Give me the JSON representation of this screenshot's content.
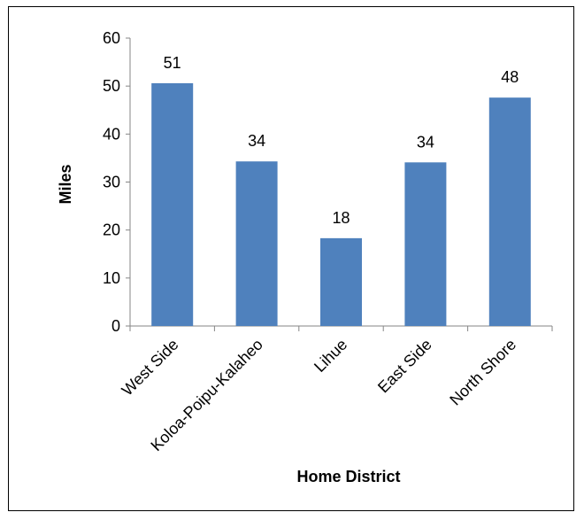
{
  "chart_data": {
    "type": "bar",
    "categories": [
      "West Side",
      "Koloa-Poipu-Kalaheo",
      "Lihue",
      "East Side",
      "North Shore"
    ],
    "values": [
      51,
      34,
      18,
      34,
      48
    ],
    "bar_heights": [
      50.6,
      34.3,
      18.3,
      34.1,
      47.6
    ],
    "data_labels": [
      "51",
      "34",
      "18",
      "34",
      "48"
    ],
    "title": "",
    "xlabel": "Home District",
    "ylabel": "Miles",
    "ylim": [
      0,
      60
    ],
    "yticks": [
      0,
      10,
      20,
      30,
      40,
      50,
      60
    ],
    "grid": false,
    "legend": "none",
    "bar_color": "#4F81BD"
  }
}
